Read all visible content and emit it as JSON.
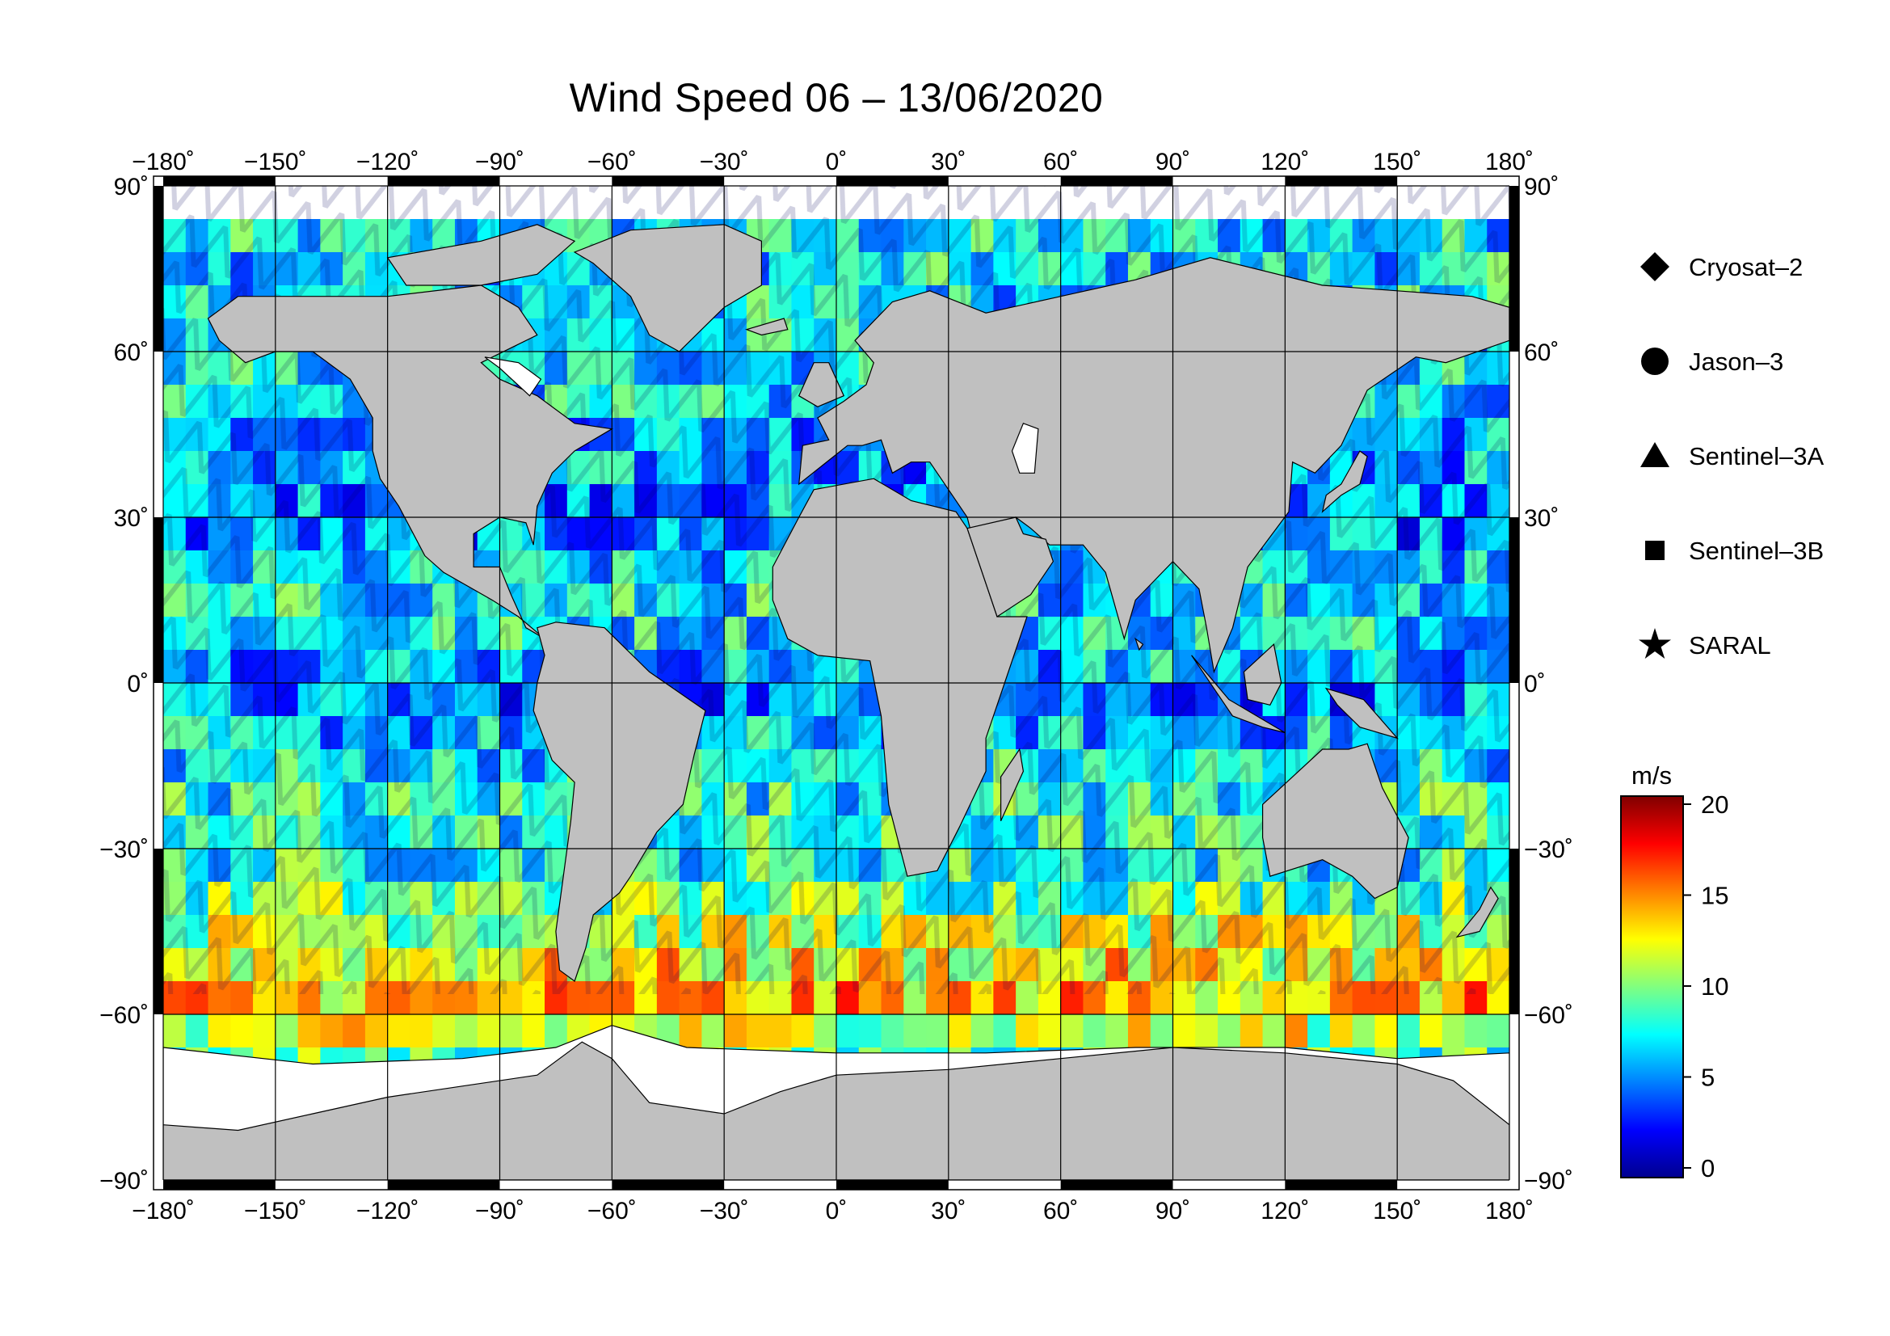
{
  "title": "Wind Speed 06 – 13/06/2020",
  "map": {
    "projection": "equirectangular",
    "lon_ticks": [
      {
        "value": -180,
        "label": "−180˚"
      },
      {
        "value": -150,
        "label": "−150˚"
      },
      {
        "value": -120,
        "label": "−120˚"
      },
      {
        "value": -90,
        "label": "−90˚"
      },
      {
        "value": -60,
        "label": "−60˚"
      },
      {
        "value": -30,
        "label": "−30˚"
      },
      {
        "value": 0,
        "label": "0˚"
      },
      {
        "value": 30,
        "label": "30˚"
      },
      {
        "value": 60,
        "label": "60˚"
      },
      {
        "value": 90,
        "label": "90˚"
      },
      {
        "value": 120,
        "label": "120˚"
      },
      {
        "value": 150,
        "label": "150˚"
      },
      {
        "value": 180,
        "label": "180˚"
      }
    ],
    "lat_ticks": [
      {
        "value": 90,
        "label": "90˚"
      },
      {
        "value": 60,
        "label": "60˚"
      },
      {
        "value": 30,
        "label": "30˚"
      },
      {
        "value": 0,
        "label": "0˚"
      },
      {
        "value": -30,
        "label": "−30˚"
      },
      {
        "value": -60,
        "label": "−60˚"
      },
      {
        "value": -90,
        "label": "−90˚"
      }
    ],
    "land_color": "#c0c0c0",
    "ice_color": "#ffffff",
    "grid": true
  },
  "legend": {
    "items": [
      {
        "label": "Cryosat–2",
        "marker": "diamond"
      },
      {
        "label": "Jason–3",
        "marker": "circle"
      },
      {
        "label": "Sentinel–3A",
        "marker": "triangle"
      },
      {
        "label": "Sentinel–3B",
        "marker": "square"
      },
      {
        "label": "SARAL",
        "marker": "star"
      }
    ]
  },
  "colorbar": {
    "unit": "m/s",
    "min": 0,
    "max": 20,
    "ticks": [
      {
        "value": 20,
        "label": "20"
      },
      {
        "value": 15,
        "label": "15"
      },
      {
        "value": 10,
        "label": "10"
      },
      {
        "value": 5,
        "label": "5"
      },
      {
        "value": 0,
        "label": "0"
      }
    ],
    "colors": [
      "#00008f",
      "#0000ff",
      "#0080ff",
      "#00ffff",
      "#80ff80",
      "#ffff00",
      "#ff8000",
      "#ff0000",
      "#800000"
    ]
  },
  "chart_data": {
    "type": "heatmap",
    "title": "Wind Speed 06 – 13/06/2020",
    "xlabel": "",
    "ylabel": "",
    "xlim": [
      -180,
      180
    ],
    "ylim": [
      -90,
      90
    ],
    "value_unit": "m/s",
    "value_range": [
      0,
      20
    ],
    "zonal_mean_wind_speed": [
      {
        "lat": 75,
        "value": 7
      },
      {
        "lat": 60,
        "value": 7
      },
      {
        "lat": 45,
        "value": 6
      },
      {
        "lat": 30,
        "value": 5
      },
      {
        "lat": 15,
        "value": 8
      },
      {
        "lat": 0,
        "value": 5
      },
      {
        "lat": -15,
        "value": 8
      },
      {
        "lat": -30,
        "value": 8
      },
      {
        "lat": -45,
        "value": 12
      },
      {
        "lat": -55,
        "value": 14
      },
      {
        "lat": -65,
        "value": 9
      }
    ]
  }
}
